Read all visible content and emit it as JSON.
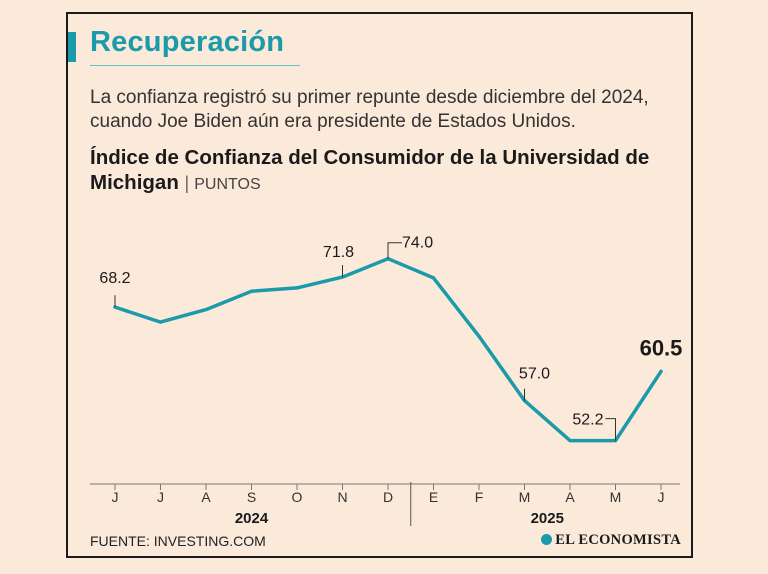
{
  "header": {
    "title": "Recuperación",
    "subtitle": "La confianza registró su primer repunte desde diciembre del 2024, cuando Joe Biden aún era presidente de Estados Unidos."
  },
  "footer": {
    "source": "FUENTE: INVESTING.COM",
    "brand": "EL ECONOMISTA"
  },
  "colors": {
    "line": "#1b9aaa",
    "accent": "#1b9aaa",
    "text": "#1a1a1a"
  },
  "chart_data": {
    "type": "line",
    "title": "Índice de Confianza del Consumidor de la Universidad de Michigan",
    "unit_label": "PUNTOS",
    "categories": [
      "J",
      "J",
      "A",
      "S",
      "O",
      "N",
      "D",
      "E",
      "F",
      "M",
      "A",
      "M",
      "J"
    ],
    "year_groups": [
      {
        "label": "2024",
        "start": 0,
        "end": 6
      },
      {
        "label": "2025",
        "start": 7,
        "end": 12
      }
    ],
    "series": [
      {
        "name": "Índice",
        "values": [
          68.2,
          66.4,
          67.9,
          70.1,
          70.5,
          71.8,
          74.0,
          71.7,
          64.7,
          57.0,
          52.2,
          52.2,
          60.5
        ]
      }
    ],
    "labels": [
      {
        "index": 0,
        "text": "68.2"
      },
      {
        "index": 5,
        "text": "71.8"
      },
      {
        "index": 6,
        "text": "74.0"
      },
      {
        "index": 9,
        "text": "57.0"
      },
      {
        "index": 11,
        "text": "52.2"
      },
      {
        "index": 12,
        "text": "60.5",
        "emphasis": true
      }
    ],
    "ylim": [
      50,
      76
    ],
    "grid": false
  }
}
